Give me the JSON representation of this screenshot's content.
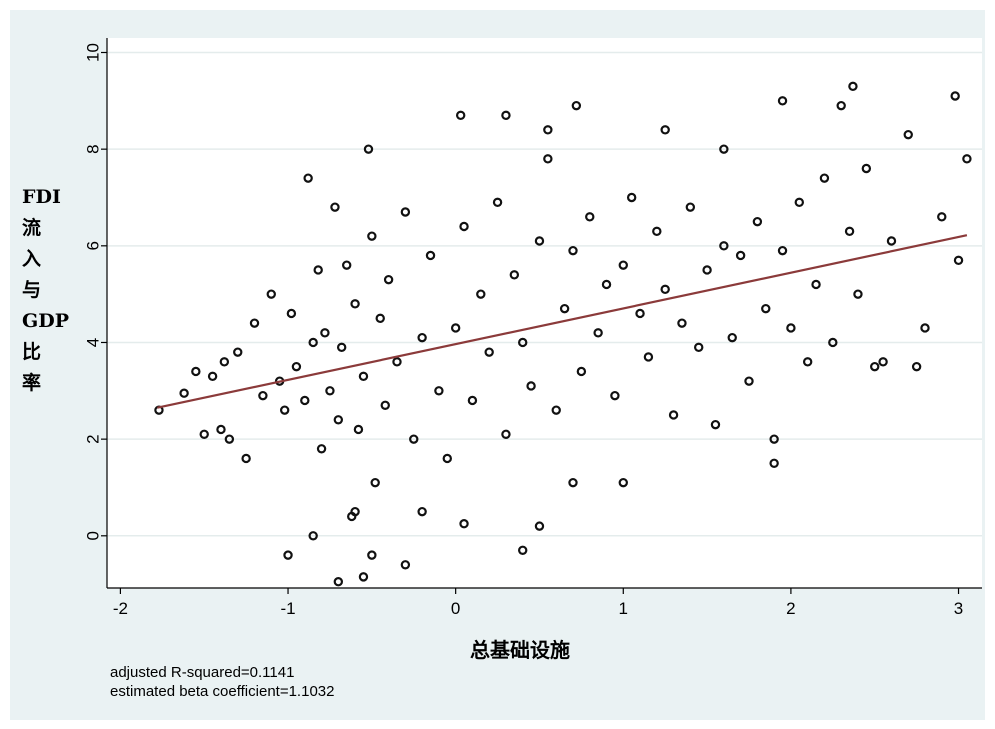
{
  "chart_data": {
    "type": "scatter",
    "title": "",
    "xlabel": "总基础设施",
    "ylabel_lines": [
      "FDI",
      "流",
      "入",
      "与",
      "GDP",
      "比",
      "率"
    ],
    "xlim": [
      -2.08,
      3.14
    ],
    "ylim": [
      -1.08,
      10.3
    ],
    "xticks": [
      -2,
      -1,
      0,
      1,
      2,
      3
    ],
    "yticks": [
      0,
      2,
      4,
      6,
      8,
      10
    ],
    "grid": "horizontal",
    "legend": "none",
    "point_style": "hollow-circle",
    "point_color": "#111111",
    "fit_line": {
      "x": [
        -1.78,
        3.05
      ],
      "y": [
        2.65,
        6.22
      ],
      "color": "#8b3a3a"
    },
    "x": [
      -1.77,
      -1.62,
      -1.55,
      -1.5,
      -1.45,
      -1.4,
      -1.38,
      -1.35,
      -1.3,
      -1.25,
      -1.2,
      -1.15,
      -1.1,
      -1.05,
      -1.02,
      -0.98,
      -0.95,
      -0.9,
      -0.88,
      -0.85,
      -0.82,
      -0.8,
      -0.78,
      -0.75,
      -0.72,
      -0.7,
      -0.68,
      -0.65,
      -0.62,
      -0.6,
      -0.58,
      -0.55,
      -0.52,
      -0.5,
      -0.48,
      -0.45,
      -0.42,
      -0.4,
      -0.35,
      -0.3,
      -0.25,
      -0.2,
      -0.15,
      -0.1,
      -0.05,
      0.0,
      0.05,
      0.1,
      0.15,
      0.2,
      0.25,
      0.3,
      0.35,
      0.4,
      0.45,
      0.5,
      0.55,
      0.6,
      0.65,
      0.7,
      0.75,
      0.8,
      0.85,
      0.9,
      0.95,
      1.0,
      1.05,
      1.1,
      1.15,
      1.2,
      1.25,
      1.3,
      1.35,
      1.4,
      1.45,
      1.5,
      1.55,
      1.6,
      1.65,
      1.7,
      1.75,
      1.8,
      1.85,
      1.9,
      1.95,
      2.0,
      2.05,
      2.1,
      2.15,
      2.2,
      2.25,
      2.3,
      2.35,
      2.4,
      2.45,
      2.5,
      2.6,
      2.7,
      2.8,
      2.9,
      3.0,
      3.05,
      -0.5,
      -0.7,
      0.03,
      0.3,
      1.95,
      2.37,
      2.98,
      -0.55,
      -1.0,
      -0.6,
      0.5,
      0.55,
      0.72,
      1.25,
      1.9,
      2.55,
      2.75,
      0.05,
      -0.85,
      -0.3,
      1.0,
      0.7,
      -0.2,
      0.4,
      1.6
    ],
    "y": [
      2.6,
      2.95,
      3.4,
      2.1,
      3.3,
      2.2,
      3.6,
      2.0,
      3.8,
      1.6,
      4.4,
      2.9,
      5.0,
      3.2,
      2.6,
      4.6,
      3.5,
      2.8,
      7.4,
      4.0,
      5.5,
      1.8,
      4.2,
      3.0,
      6.8,
      2.4,
      3.9,
      5.6,
      0.4,
      4.8,
      2.2,
      3.3,
      8.0,
      6.2,
      1.1,
      4.5,
      2.7,
      5.3,
      3.6,
      6.7,
      2.0,
      4.1,
      5.8,
      3.0,
      1.6,
      4.3,
      6.4,
      2.8,
      5.0,
      3.8,
      6.9,
      2.1,
      5.4,
      4.0,
      3.1,
      6.1,
      7.8,
      2.6,
      4.7,
      5.9,
      3.4,
      6.6,
      4.2,
      5.2,
      2.9,
      5.6,
      7.0,
      4.6,
      3.7,
      6.3,
      5.1,
      2.5,
      4.4,
      6.8,
      3.9,
      5.5,
      2.3,
      6.0,
      4.1,
      5.8,
      3.2,
      6.5,
      4.7,
      2.0,
      5.9,
      4.3,
      6.9,
      3.6,
      5.2,
      7.4,
      4.0,
      8.9,
      6.3,
      5.0,
      7.6,
      3.5,
      6.1,
      8.3,
      4.3,
      6.6,
      5.7,
      7.8,
      -0.4,
      -0.95,
      8.7,
      8.7,
      9.0,
      9.3,
      9.1,
      -0.85,
      -0.4,
      0.5,
      0.2,
      8.4,
      8.9,
      8.4,
      1.5,
      3.6,
      3.5,
      0.25,
      0.0,
      -0.6,
      1.1,
      1.1,
      0.5,
      -0.3,
      8.0
    ]
  },
  "annotations": {
    "r_squared": "adjusted R-squared=0.1141",
    "beta": "estimated beta coefficient=1.1032"
  }
}
